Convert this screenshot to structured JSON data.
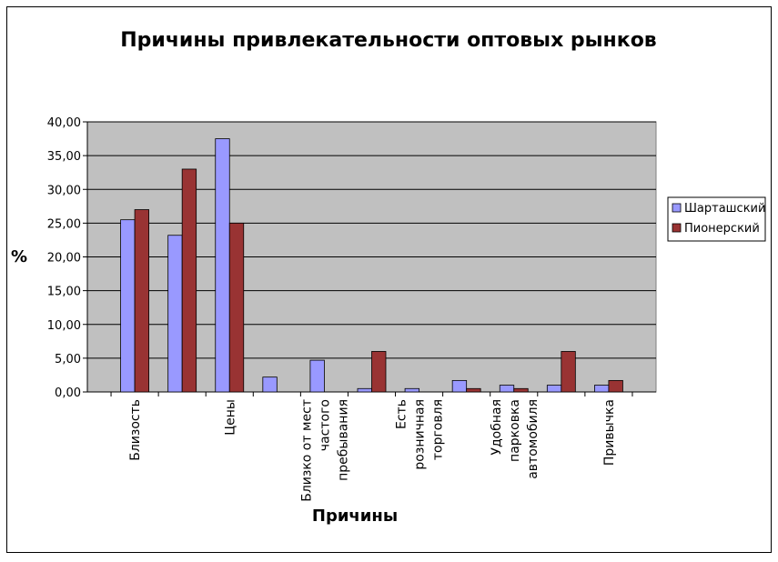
{
  "chart_data": {
    "type": "bar",
    "title": "Причины привлекательности оптовых рынков",
    "xlabel": "Причины",
    "ylabel": "%",
    "ylim": [
      0,
      40
    ],
    "ytick_labels": [
      "0,00",
      "5,00",
      "10,00",
      "15,00",
      "20,00",
      "25,00",
      "30,00",
      "35,00",
      "40,00"
    ],
    "categories": [
      "Близость",
      "",
      "Цены",
      "",
      "Близко от мест частого пребывания",
      "",
      "Есть розничная торговля",
      "",
      "Удобная парковка автомобиля",
      "",
      "Привычка"
    ],
    "category_lines": [
      [
        "Близость"
      ],
      [],
      [
        "Цены"
      ],
      [],
      [
        "Близко от мест",
        "частого",
        "пребывания"
      ],
      [],
      [
        "Есть",
        "розничная",
        "торговля"
      ],
      [],
      [
        "Удобная",
        "парковка",
        "автомобиля"
      ],
      [],
      [
        "Привычка"
      ]
    ],
    "series": [
      {
        "name": "Шарташский",
        "color": "#9999ff",
        "values": [
          25.5,
          23.2,
          37.5,
          2.2,
          4.7,
          0.5,
          0.5,
          1.7,
          1.0,
          1.0,
          1.0
        ]
      },
      {
        "name": "Пионерский",
        "color": "#993333",
        "values": [
          27.0,
          33.0,
          25.0,
          0.0,
          0.0,
          6.0,
          0.0,
          0.5,
          0.5,
          6.0,
          1.7
        ]
      }
    ],
    "plot_background": "#c0c0c0",
    "grid": true,
    "legend_position": "right"
  }
}
